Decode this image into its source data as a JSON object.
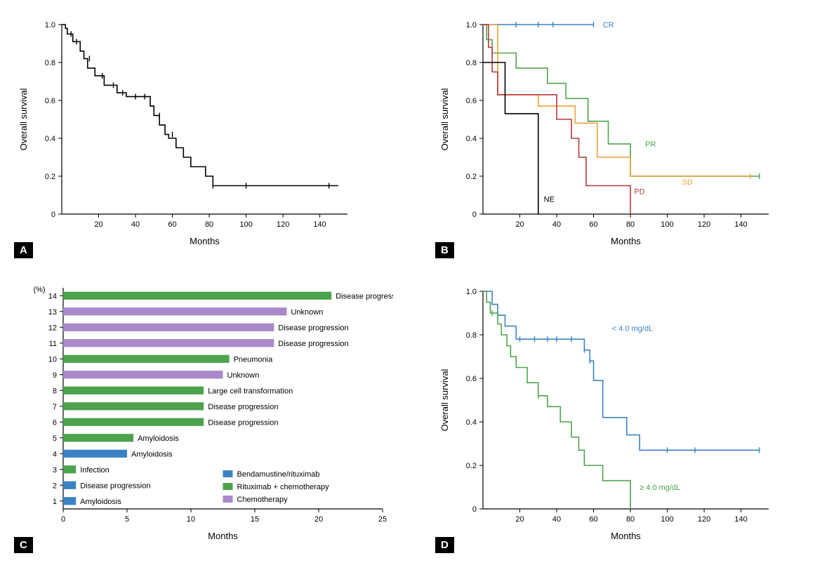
{
  "panelA": {
    "label": "A",
    "xlabel": "Months",
    "ylabel": "Overall survival",
    "xlim": [
      0,
      155
    ],
    "ylim": [
      0,
      1.0
    ],
    "xticks": [
      20,
      40,
      60,
      80,
      100,
      120,
      140
    ],
    "yticks": [
      0,
      0.2,
      0.4,
      0.6,
      0.8,
      1.0
    ],
    "line_color": "#000000",
    "line_width": 1.5,
    "censor_marks": [
      [
        5,
        0.95
      ],
      [
        8,
        0.91
      ],
      [
        15,
        0.82
      ],
      [
        22,
        0.73
      ],
      [
        28,
        0.68
      ],
      [
        33,
        0.64
      ],
      [
        40,
        0.62
      ],
      [
        45,
        0.62
      ],
      [
        53,
        0.52
      ],
      [
        60,
        0.42
      ],
      [
        82,
        0.15
      ],
      [
        100,
        0.15
      ],
      [
        145,
        0.15
      ]
    ],
    "steps": [
      [
        0,
        1.0
      ],
      [
        2,
        1.0
      ],
      [
        2,
        0.98
      ],
      [
        3,
        0.98
      ],
      [
        3,
        0.95
      ],
      [
        6,
        0.95
      ],
      [
        6,
        0.91
      ],
      [
        10,
        0.91
      ],
      [
        10,
        0.86
      ],
      [
        12,
        0.86
      ],
      [
        12,
        0.82
      ],
      [
        14,
        0.82
      ],
      [
        14,
        0.77
      ],
      [
        18,
        0.77
      ],
      [
        18,
        0.73
      ],
      [
        23,
        0.73
      ],
      [
        23,
        0.68
      ],
      [
        30,
        0.68
      ],
      [
        30,
        0.64
      ],
      [
        35,
        0.64
      ],
      [
        35,
        0.62
      ],
      [
        48,
        0.62
      ],
      [
        48,
        0.57
      ],
      [
        50,
        0.57
      ],
      [
        50,
        0.52
      ],
      [
        53,
        0.52
      ],
      [
        53,
        0.47
      ],
      [
        56,
        0.47
      ],
      [
        56,
        0.42
      ],
      [
        58,
        0.42
      ],
      [
        58,
        0.4
      ],
      [
        62,
        0.4
      ],
      [
        62,
        0.35
      ],
      [
        66,
        0.35
      ],
      [
        66,
        0.3
      ],
      [
        70,
        0.3
      ],
      [
        70,
        0.25
      ],
      [
        78,
        0.25
      ],
      [
        78,
        0.2
      ],
      [
        82,
        0.2
      ],
      [
        82,
        0.15
      ],
      [
        150,
        0.15
      ]
    ]
  },
  "panelB": {
    "label": "B",
    "xlabel": "Months",
    "ylabel": "Overall survival",
    "xlim": [
      0,
      155
    ],
    "ylim": [
      0,
      1.0
    ],
    "xticks": [
      20,
      40,
      60,
      80,
      100,
      120,
      140
    ],
    "yticks": [
      0,
      0.2,
      0.4,
      0.6,
      0.8,
      1.0
    ],
    "series": [
      {
        "name": "CR",
        "color": "#3b82c4",
        "steps": [
          [
            0,
            1.0
          ],
          [
            60,
            1.0
          ]
        ],
        "label_pos": [
          65,
          1.0
        ],
        "censor": [
          [
            18,
            1.0
          ],
          [
            30,
            1.0
          ],
          [
            38,
            1.0
          ],
          [
            60,
            1.0
          ]
        ]
      },
      {
        "name": "PR",
        "color": "#4da34d",
        "steps": [
          [
            0,
            1.0
          ],
          [
            2,
            1.0
          ],
          [
            2,
            0.92
          ],
          [
            5,
            0.92
          ],
          [
            5,
            0.85
          ],
          [
            18,
            0.85
          ],
          [
            18,
            0.77
          ],
          [
            35,
            0.77
          ],
          [
            35,
            0.69
          ],
          [
            45,
            0.69
          ],
          [
            45,
            0.61
          ],
          [
            57,
            0.61
          ],
          [
            57,
            0.49
          ],
          [
            68,
            0.49
          ],
          [
            68,
            0.37
          ],
          [
            80,
            0.37
          ],
          [
            80,
            0.2
          ],
          [
            150,
            0.2
          ]
        ],
        "label_pos": [
          88,
          0.37
        ],
        "censor": [
          [
            150,
            0.2
          ]
        ]
      },
      {
        "name": "SD",
        "color": "#e8a33d",
        "steps": [
          [
            0,
            1.0
          ],
          [
            8,
            1.0
          ],
          [
            8,
            0.63
          ],
          [
            30,
            0.63
          ],
          [
            30,
            0.57
          ],
          [
            50,
            0.57
          ],
          [
            50,
            0.48
          ],
          [
            62,
            0.48
          ],
          [
            62,
            0.3
          ],
          [
            80,
            0.3
          ],
          [
            80,
            0.2
          ],
          [
            145,
            0.2
          ]
        ],
        "label_pos": [
          108,
          0.17
        ],
        "censor": [
          [
            145,
            0.2
          ]
        ]
      },
      {
        "name": "PD",
        "color": "#b83939",
        "steps": [
          [
            0,
            1.0
          ],
          [
            3,
            1.0
          ],
          [
            3,
            0.88
          ],
          [
            5,
            0.88
          ],
          [
            5,
            0.75
          ],
          [
            8,
            0.75
          ],
          [
            8,
            0.63
          ],
          [
            40,
            0.63
          ],
          [
            40,
            0.5
          ],
          [
            48,
            0.5
          ],
          [
            48,
            0.4
          ],
          [
            52,
            0.4
          ],
          [
            52,
            0.3
          ],
          [
            56,
            0.3
          ],
          [
            56,
            0.15
          ],
          [
            80,
            0.15
          ],
          [
            80,
            0
          ]
        ],
        "label_pos": [
          82,
          0.12
        ],
        "censor": []
      },
      {
        "name": "NE",
        "color": "#000000",
        "steps": [
          [
            0,
            0.8
          ],
          [
            12,
            0.8
          ],
          [
            12,
            0.53
          ],
          [
            30,
            0.53
          ],
          [
            30,
            0
          ]
        ],
        "label_pos": [
          33,
          0.08
        ],
        "censor": []
      }
    ]
  },
  "panelC": {
    "label": "C",
    "xlabel": "Months",
    "ylabel_unit": "(%)",
    "xlim": [
      0,
      25
    ],
    "xticks": [
      0,
      5,
      10,
      15,
      20,
      25
    ],
    "bar_height": 0.5,
    "colors": {
      "bendamustine": "#3b82c4",
      "rituximab_chemo": "#4da34d",
      "chemo": "#a889c9"
    },
    "legend": [
      {
        "label": "Bendamustine/rituximab",
        "color": "#3b82c4"
      },
      {
        "label": "Rituximab + chemotherapy",
        "color": "#4da34d"
      },
      {
        "label": "Chemotherapy",
        "color": "#a889c9"
      }
    ],
    "bars": [
      {
        "y": 14,
        "len": 21,
        "color": "#4da34d",
        "text": "Disease progression"
      },
      {
        "y": 13,
        "len": 17.5,
        "color": "#a889c9",
        "text": "Unknown"
      },
      {
        "y": 12,
        "len": 16.5,
        "color": "#a889c9",
        "text": "Disease progression"
      },
      {
        "y": 11,
        "len": 16.5,
        "color": "#a889c9",
        "text": "Disease progression"
      },
      {
        "y": 10,
        "len": 13,
        "color": "#4da34d",
        "text": "Pneumonia"
      },
      {
        "y": 9,
        "len": 12.5,
        "color": "#a889c9",
        "text": "Unknown"
      },
      {
        "y": 8,
        "len": 11,
        "color": "#4da34d",
        "text": "Large cell transformation"
      },
      {
        "y": 7,
        "len": 11,
        "color": "#4da34d",
        "text": "Disease progression"
      },
      {
        "y": 6,
        "len": 11,
        "color": "#4da34d",
        "text": "Disease progression"
      },
      {
        "y": 5,
        "len": 5.5,
        "color": "#4da34d",
        "text": "Amyloidosis"
      },
      {
        "y": 4,
        "len": 5,
        "color": "#3b82c4",
        "text": "Amyloidosis"
      },
      {
        "y": 3,
        "len": 1,
        "color": "#4da34d",
        "text": "Infection"
      },
      {
        "y": 2,
        "len": 1,
        "color": "#3b82c4",
        "text": "Disease progression"
      },
      {
        "y": 1,
        "len": 1,
        "color": "#3b82c4",
        "text": "Amyloidosis"
      }
    ]
  },
  "panelD": {
    "label": "D",
    "xlabel": "Months",
    "ylabel": "Overall survival",
    "xlim": [
      0,
      155
    ],
    "ylim": [
      0,
      1.0
    ],
    "xticks": [
      20,
      40,
      60,
      80,
      100,
      120,
      140
    ],
    "yticks": [
      0,
      0.2,
      0.4,
      0.6,
      0.8,
      1.0
    ],
    "series": [
      {
        "name": "< 4.0 mg/dL",
        "color": "#3b82c4",
        "steps": [
          [
            0,
            1.0
          ],
          [
            5,
            1.0
          ],
          [
            5,
            0.94
          ],
          [
            8,
            0.94
          ],
          [
            8,
            0.89
          ],
          [
            12,
            0.89
          ],
          [
            12,
            0.84
          ],
          [
            18,
            0.84
          ],
          [
            18,
            0.78
          ],
          [
            55,
            0.78
          ],
          [
            55,
            0.73
          ],
          [
            58,
            0.73
          ],
          [
            58,
            0.68
          ],
          [
            60,
            0.68
          ],
          [
            60,
            0.59
          ],
          [
            65,
            0.59
          ],
          [
            65,
            0.42
          ],
          [
            78,
            0.42
          ],
          [
            78,
            0.34
          ],
          [
            85,
            0.34
          ],
          [
            85,
            0.27
          ],
          [
            150,
            0.27
          ]
        ],
        "label_pos": [
          70,
          0.83
        ],
        "censor": [
          [
            20,
            0.78
          ],
          [
            28,
            0.78
          ],
          [
            35,
            0.78
          ],
          [
            40,
            0.78
          ],
          [
            48,
            0.78
          ],
          [
            55,
            0.73
          ],
          [
            58,
            0.68
          ],
          [
            100,
            0.27
          ],
          [
            115,
            0.27
          ],
          [
            150,
            0.27
          ]
        ]
      },
      {
        "name": "≥ 4.0 mg/dL",
        "color": "#4da34d",
        "steps": [
          [
            0,
            1.0
          ],
          [
            2,
            1.0
          ],
          [
            2,
            0.95
          ],
          [
            4,
            0.95
          ],
          [
            4,
            0.9
          ],
          [
            8,
            0.9
          ],
          [
            8,
            0.85
          ],
          [
            10,
            0.85
          ],
          [
            10,
            0.8
          ],
          [
            13,
            0.8
          ],
          [
            13,
            0.75
          ],
          [
            15,
            0.75
          ],
          [
            15,
            0.7
          ],
          [
            18,
            0.7
          ],
          [
            18,
            0.65
          ],
          [
            24,
            0.65
          ],
          [
            24,
            0.58
          ],
          [
            30,
            0.58
          ],
          [
            30,
            0.52
          ],
          [
            35,
            0.52
          ],
          [
            35,
            0.47
          ],
          [
            42,
            0.47
          ],
          [
            42,
            0.4
          ],
          [
            48,
            0.4
          ],
          [
            48,
            0.33
          ],
          [
            52,
            0.33
          ],
          [
            52,
            0.27
          ],
          [
            55,
            0.27
          ],
          [
            55,
            0.2
          ],
          [
            65,
            0.2
          ],
          [
            65,
            0.13
          ],
          [
            80,
            0.13
          ],
          [
            80,
            0
          ]
        ],
        "label_pos": [
          85,
          0.1
        ],
        "censor": [
          [
            5,
            0.9
          ],
          [
            30,
            0.52
          ]
        ]
      }
    ]
  },
  "font": {
    "axis_label_size": 13,
    "tick_size": 11,
    "annotation_size": 11,
    "panel_label_size": 15
  }
}
